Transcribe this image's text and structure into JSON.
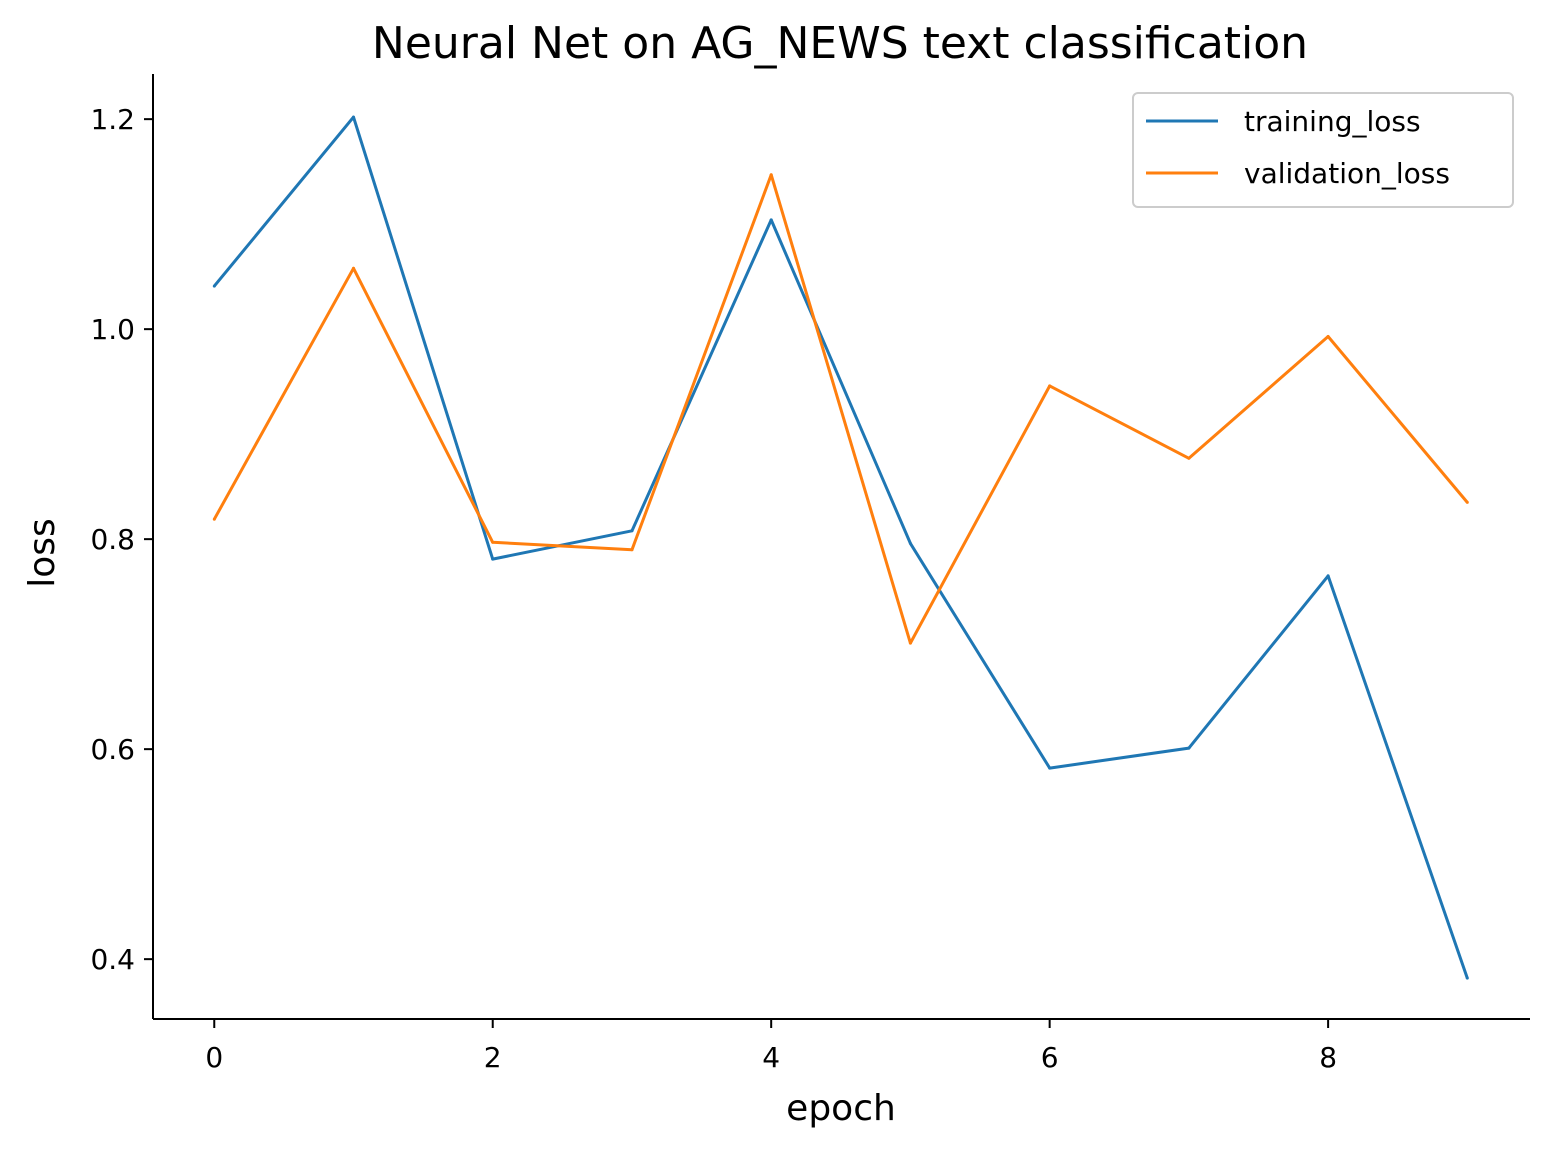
{
  "chart_data": {
    "type": "line",
    "title": "Neural Net on AG_NEWS text classification",
    "xlabel": "epoch",
    "ylabel": "loss",
    "x": [
      0,
      1,
      2,
      3,
      4,
      5,
      6,
      7,
      8,
      9
    ],
    "xlim": [
      -0.44,
      9.45
    ],
    "ylim": [
      0.343,
      1.243
    ],
    "xticks": [
      "0",
      "2",
      "4",
      "6",
      "8"
    ],
    "xtick_values": [
      0,
      2,
      4,
      6,
      8
    ],
    "yticks": [
      "0.4",
      "0.6",
      "0.8",
      "1.0",
      "1.2"
    ],
    "ytick_values": [
      0.4,
      0.6,
      0.8,
      1.0,
      1.2
    ],
    "grid": false,
    "legend_position": "top-right",
    "series": [
      {
        "name": "training_loss",
        "color": "#1f77b4",
        "values": [
          1.041,
          1.202,
          0.781,
          0.808,
          1.104,
          0.796,
          0.582,
          0.601,
          0.765,
          0.382
        ]
      },
      {
        "name": "validation_loss",
        "color": "#ff7f0e",
        "values": [
          0.819,
          1.058,
          0.797,
          0.79,
          1.147,
          0.701,
          0.946,
          0.877,
          0.993,
          0.835
        ]
      }
    ]
  }
}
